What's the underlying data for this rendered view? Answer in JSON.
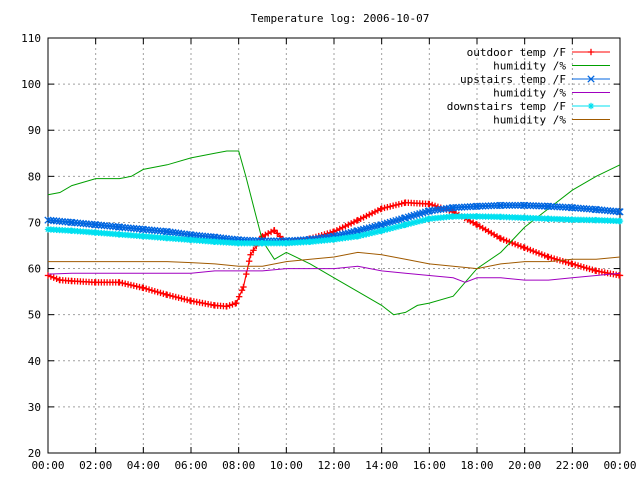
{
  "chart_data": {
    "type": "line",
    "title": "Temperature log: 2006-10-07",
    "xlabel": "",
    "ylabel": "",
    "x_unit": "hour of day",
    "xlim": [
      0,
      24
    ],
    "ylim": [
      20,
      110
    ],
    "grid": true,
    "legend_position": "top-right",
    "x_ticks": [
      {
        "value": 0,
        "label": "00:00"
      },
      {
        "value": 2,
        "label": "02:00"
      },
      {
        "value": 4,
        "label": "04:00"
      },
      {
        "value": 6,
        "label": "06:00"
      },
      {
        "value": 8,
        "label": "08:00"
      },
      {
        "value": 10,
        "label": "10:00"
      },
      {
        "value": 12,
        "label": "12:00"
      },
      {
        "value": 14,
        "label": "14:00"
      },
      {
        "value": 16,
        "label": "16:00"
      },
      {
        "value": 18,
        "label": "18:00"
      },
      {
        "value": 20,
        "label": "20:00"
      },
      {
        "value": 22,
        "label": "22:00"
      },
      {
        "value": 24,
        "label": "00:00"
      }
    ],
    "y_ticks": [
      20,
      30,
      40,
      50,
      60,
      70,
      80,
      90,
      100,
      110
    ],
    "series": [
      {
        "name": "outdoor temp /F",
        "color": "#ff0000",
        "marker": "plus",
        "x": [
          0,
          0.5,
          1,
          2,
          3,
          4,
          5,
          6,
          7,
          7.5,
          7.9,
          8.2,
          8.5,
          9,
          9.5,
          10,
          11,
          12,
          13,
          14,
          15,
          16,
          17,
          18,
          19,
          20,
          21,
          22,
          23,
          24
        ],
        "values": [
          58.5,
          57.5,
          57.3,
          57,
          57,
          55.8,
          54.3,
          53,
          52,
          51.8,
          52.5,
          56,
          63,
          67,
          68.3,
          65.5,
          66.5,
          68,
          70.5,
          73,
          74.3,
          74,
          72.3,
          69.5,
          66.5,
          64.5,
          62.5,
          61,
          59.5,
          58.5
        ]
      },
      {
        "name": "humidity /%",
        "color": "#00a000",
        "marker": "none",
        "x": [
          0,
          0.5,
          1,
          2,
          3,
          3.5,
          4,
          5,
          6,
          7,
          7.5,
          8,
          8.3,
          8.7,
          9,
          9.5,
          10,
          11,
          12,
          13,
          14,
          14.5,
          15,
          15.5,
          16,
          17,
          18,
          19,
          20,
          21,
          22,
          23,
          24
        ],
        "values": [
          76,
          76.5,
          78,
          79.5,
          79.5,
          80,
          81.5,
          82.5,
          84,
          85,
          85.5,
          85.5,
          80,
          72,
          66,
          62,
          63.5,
          61,
          58,
          55,
          52,
          50,
          50.5,
          52,
          52.5,
          54,
          60,
          63.5,
          69,
          73,
          77,
          80,
          82.5
        ]
      },
      {
        "name": "upstairs temp /F",
        "color": "#0066e0",
        "marker": "x",
        "x": [
          0,
          1,
          2,
          3,
          4,
          5,
          6,
          7,
          8,
          9,
          10,
          11,
          12,
          13,
          14,
          15,
          16,
          17,
          18,
          19,
          20,
          21,
          22,
          23,
          24
        ],
        "values": [
          70.5,
          70,
          69.5,
          69,
          68.5,
          68,
          67.3,
          66.8,
          66.2,
          66,
          66,
          66.3,
          67,
          68.2,
          69.5,
          71,
          72.5,
          73.2,
          73.5,
          73.7,
          73.7,
          73.5,
          73.2,
          72.8,
          72.3
        ]
      },
      {
        "name": "humidity /%",
        "color": "#a000c0",
        "marker": "none",
        "x": [
          0,
          1,
          2,
          3,
          4,
          5,
          6,
          7,
          8,
          9,
          10,
          11,
          12,
          13,
          14,
          15,
          16,
          17,
          17.5,
          18,
          19,
          20,
          21,
          22,
          23,
          24
        ],
        "values": [
          58.8,
          59,
          59,
          59,
          59,
          59,
          59,
          59.5,
          59.5,
          59.5,
          60,
          60,
          60,
          60.5,
          59.5,
          59,
          58.5,
          58,
          57,
          58,
          58,
          57.5,
          57.5,
          58,
          58.5,
          59
        ]
      },
      {
        "name": "downstairs temp /F",
        "color": "#00e0f0",
        "marker": "star",
        "x": [
          0,
          1,
          2,
          3,
          4,
          5,
          6,
          7,
          8,
          9,
          10,
          11,
          12,
          13,
          14,
          15,
          16,
          17,
          18,
          19,
          20,
          21,
          22,
          23,
          24
        ],
        "values": [
          68.5,
          68.2,
          67.8,
          67.4,
          67,
          66.6,
          66.2,
          65.8,
          65.5,
          65.5,
          65.5,
          65.8,
          66.3,
          67,
          68.2,
          69.5,
          70.8,
          71.3,
          71.3,
          71.2,
          71,
          70.8,
          70.6,
          70.5,
          70.3
        ]
      },
      {
        "name": "humidity /%",
        "color": "#a05a00",
        "marker": "none",
        "x": [
          0,
          1,
          2,
          3,
          4,
          5,
          6,
          7,
          8,
          9,
          10,
          11,
          12,
          13,
          14,
          15,
          16,
          17,
          18,
          19,
          20,
          21,
          22,
          23,
          24
        ],
        "values": [
          61.5,
          61.5,
          61.5,
          61.5,
          61.5,
          61.5,
          61.3,
          61,
          60.5,
          60.5,
          61.5,
          62,
          62.5,
          63.5,
          63,
          62,
          61,
          60.5,
          60,
          61,
          61.5,
          61.5,
          62,
          62,
          62.5
        ]
      }
    ]
  }
}
